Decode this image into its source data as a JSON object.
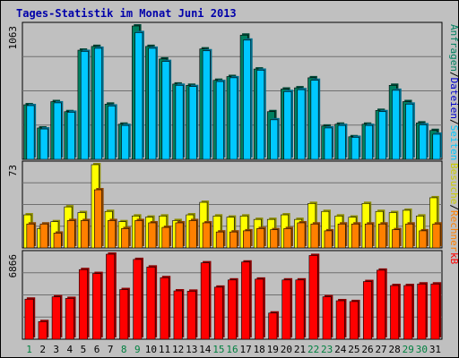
{
  "chart_data": {
    "type": "bar",
    "title": "Tages-Statistik im Monat Juni 2013",
    "categories": [
      "1",
      "2",
      "3",
      "4",
      "5",
      "6",
      "7",
      "8",
      "9",
      "10",
      "11",
      "12",
      "13",
      "14",
      "15",
      "16",
      "17",
      "18",
      "19",
      "20",
      "21",
      "22",
      "23",
      "24",
      "25",
      "26",
      "27",
      "28",
      "29",
      "30",
      "31"
    ],
    "weekend_days": [
      "1",
      "8",
      "9",
      "15",
      "16",
      "22",
      "23",
      "29",
      "30"
    ],
    "panels": [
      {
        "id": "top",
        "max_label": "1063",
        "max": 1063,
        "series": [
          {
            "name": "Anfragen",
            "color": "#008060",
            "values": [
              435,
              250,
              460,
              380,
              870,
              900,
              440,
              280,
              1063,
              900,
              800,
              600,
              590,
              880,
              630,
              660,
              990,
              720,
              380,
              560,
              570,
              650,
              265,
              280,
              180,
              280,
              390,
              590,
              460,
              290,
              230
            ]
          },
          {
            "name": "Dateien",
            "color": "#00C8FF",
            "values": [
              428,
              242,
              450,
              375,
              860,
              885,
              425,
              270,
              1010,
              885,
              780,
              590,
              580,
              865,
              620,
              650,
              950,
              710,
              315,
              540,
              555,
              630,
              250,
              270,
              175,
              270,
              380,
              550,
              440,
              275,
              200
            ]
          },
          {
            "name": "Seiten",
            "color": "#00FFFF",
            "values": []
          }
        ],
        "labels": [
          {
            "text": "Anfragen",
            "color": "#008060"
          },
          {
            "text": "/",
            "color": "#000000"
          },
          {
            "text": "Dateien",
            "color": "#0000CC"
          },
          {
            "text": "/",
            "color": "#000000"
          },
          {
            "text": "Seiten",
            "color": "#00C8FF"
          }
        ]
      },
      {
        "id": "middle",
        "max_label": "73",
        "max": 73,
        "series": [
          {
            "name": "Besuche",
            "color": "#FFFF00",
            "values": [
              29,
              17,
              23,
              36,
              31,
              73,
              32,
              23,
              28,
              27,
              28,
              24,
              29,
              40,
              28,
              27,
              28,
              25,
              25,
              29,
              25,
              39,
              32,
              28,
              27,
              39,
              32,
              31,
              33,
              28,
              44
            ]
          },
          {
            "name": "Rechner",
            "color": "#FF8000",
            "values": [
              21,
              21,
              13,
              24,
              24,
              51,
              24,
              17,
              24,
              22,
              18,
              22,
              24,
              22,
              14,
              14,
              15,
              17,
              16,
              17,
              22,
              21,
              15,
              21,
              21,
              21,
              21,
              16,
              21,
              15,
              21
            ]
          }
        ],
        "labels": [
          {
            "text": "Besuche",
            "color": "#CCCC00"
          },
          {
            "text": "/",
            "color": "#000000"
          },
          {
            "text": "Rechner",
            "color": "#FF8000"
          }
        ]
      },
      {
        "id": "bottom",
        "max_label": "6866",
        "max": 6866,
        "series": [
          {
            "name": "kB",
            "color": "#FF0000",
            "values": [
              3235,
              1423,
              3423,
              3294,
              5622,
              5307,
              6866,
              4009,
              6440,
              5828,
              4971,
              3903,
              3877,
              6169,
              4203,
              4785,
              6233,
              4851,
              2114,
              4785,
              4785,
              6763,
              3429,
              3106,
              3041,
              4656,
              5574,
              4333,
              4333,
              4462,
              4462
            ]
          }
        ],
        "labels": [
          {
            "text": "kB",
            "color": "#FF0000"
          }
        ]
      }
    ]
  }
}
